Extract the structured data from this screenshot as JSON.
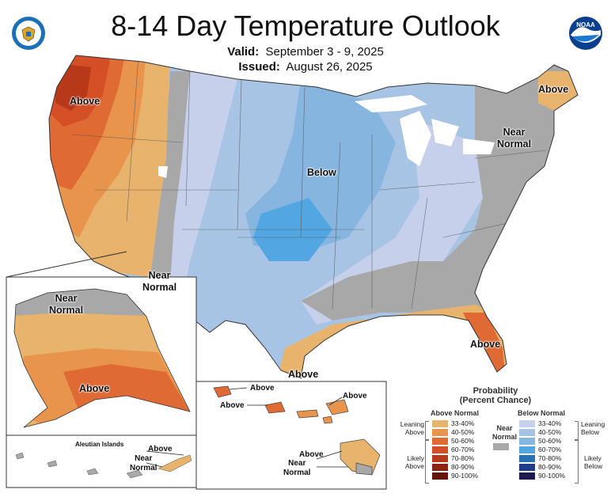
{
  "header": {
    "title": "8-14 Day Temperature Outlook",
    "valid_label": "Valid:",
    "valid_value": "September 3 - 9, 2025",
    "issued_label": "Issued:",
    "issued_value": "August 26, 2025"
  },
  "logos": {
    "left": "commerce-seal-icon",
    "right": "noaa-logo-icon",
    "noaa_text": "NOAA"
  },
  "map_labels": {
    "pacific_nw": "Above",
    "maine": "Above",
    "northeast": "Near\nNormal",
    "midwest": "Below",
    "southwest": "Near\nNormal",
    "florida": "Above",
    "gulf": "Above",
    "alaska_north": "Near\nNormal",
    "alaska_south": "Above",
    "aleutian_title": "Aleutian Islands",
    "aleutian_above": "Above",
    "aleutian_near": "Near\nNormal",
    "hawaii_above_1": "Above",
    "hawaii_above_2": "Above",
    "hawaii_above_3": "Above",
    "hawaii_above_4": "Above",
    "hawaii_near": "Near\nNormal"
  },
  "legend": {
    "title": "Probability\n(Percent Chance)",
    "above_header": "Above Normal",
    "below_header": "Below Normal",
    "near_label": "Near\nNormal",
    "leaning_above": "Leaning\nAbove",
    "likely_above": "Likely\nAbove",
    "leaning_below": "Leaning\nBelow",
    "likely_below": "Likely\nBelow",
    "above_bins": [
      {
        "label": "33-40%",
        "color": "#e8b36c"
      },
      {
        "label": "40-50%",
        "color": "#e8944c"
      },
      {
        "label": "50-60%",
        "color": "#e06a34"
      },
      {
        "label": "60-70%",
        "color": "#d44e26"
      },
      {
        "label": "70-80%",
        "color": "#b8381a"
      },
      {
        "label": "80-90%",
        "color": "#8e2410"
      },
      {
        "label": "90-100%",
        "color": "#661608"
      }
    ],
    "below_bins": [
      {
        "label": "33-40%",
        "color": "#c6d0ea"
      },
      {
        "label": "40-50%",
        "color": "#a8c4e4"
      },
      {
        "label": "50-60%",
        "color": "#86b6e0"
      },
      {
        "label": "60-70%",
        "color": "#52a6e2"
      },
      {
        "label": "70-80%",
        "color": "#2872b4"
      },
      {
        "label": "80-90%",
        "color": "#1e3c8a"
      },
      {
        "label": "90-100%",
        "color": "#1a1a52"
      }
    ],
    "near_color": "#a8a8a8"
  }
}
